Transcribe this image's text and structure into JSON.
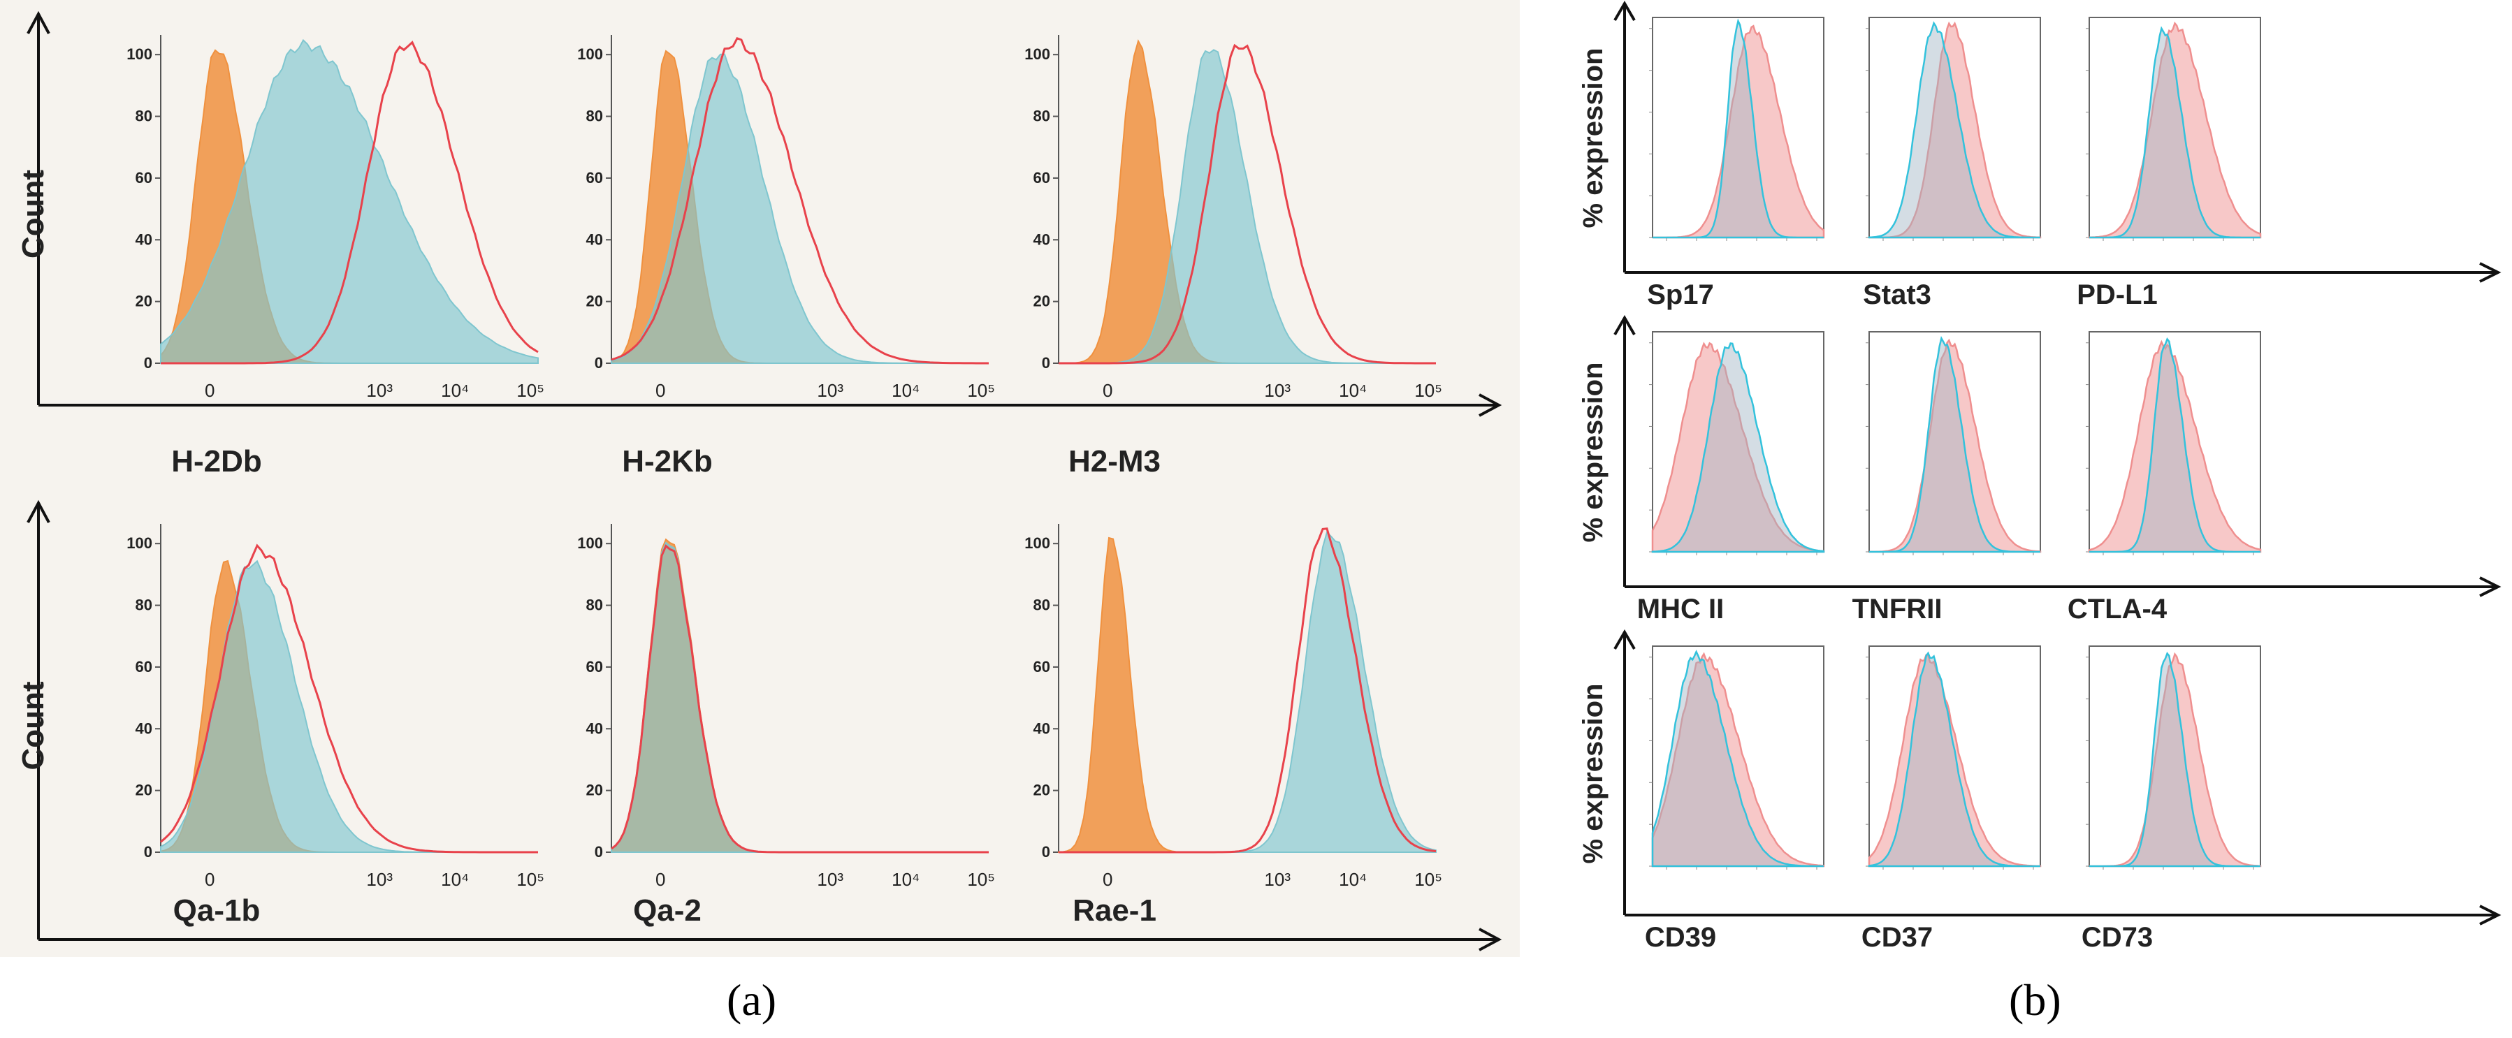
{
  "chart_data": [
    {
      "type": "histogram-grid",
      "panel_label": "(a)",
      "ylabel": "Count",
      "y_ticks": [
        "0",
        "20",
        "40",
        "60",
        "80",
        "100"
      ],
      "x_ticks": [
        "0",
        "10³",
        "10⁴",
        "10⁵"
      ],
      "series_colors": {
        "isotype": "#f0913f",
        "cells_a": "#7fc6cf",
        "cells_b": "#e8424b"
      },
      "histograms": [
        {
          "label": "H-2Db",
          "curves": [
            {
              "series": "isotype",
              "filled": true,
              "peak_x": 0.15,
              "width": 0.055,
              "height": 96
            },
            {
              "series": "cells_a",
              "filled": true,
              "peak_x": 0.38,
              "width": 0.16,
              "height": 97
            },
            {
              "series": "cells_b",
              "filled": false,
              "peak_x": 0.65,
              "width": 0.1,
              "height": 97
            }
          ]
        },
        {
          "label": "H-2Kb",
          "curves": [
            {
              "series": "isotype",
              "filled": true,
              "peak_x": 0.15,
              "width": 0.045,
              "height": 96
            },
            {
              "series": "cells_a",
              "filled": true,
              "peak_x": 0.28,
              "width": 0.09,
              "height": 94
            },
            {
              "series": "cells_b",
              "filled": false,
              "peak_x": 0.33,
              "width": 0.11,
              "height": 98
            }
          ]
        },
        {
          "label": "H2-M3",
          "curves": [
            {
              "series": "isotype",
              "filled": true,
              "peak_x": 0.21,
              "width": 0.045,
              "height": 97
            },
            {
              "series": "cells_a",
              "filled": true,
              "peak_x": 0.4,
              "width": 0.07,
              "height": 96
            },
            {
              "series": "cells_b",
              "filled": false,
              "peak_x": 0.48,
              "width": 0.08,
              "height": 97
            }
          ]
        },
        {
          "label": "Qa-1b",
          "curves": [
            {
              "series": "isotype",
              "filled": true,
              "peak_x": 0.17,
              "width": 0.05,
              "height": 88
            },
            {
              "series": "cells_a",
              "filled": true,
              "peak_x": 0.24,
              "width": 0.085,
              "height": 88
            },
            {
              "series": "cells_b",
              "filled": false,
              "peak_x": 0.26,
              "width": 0.1,
              "height": 92
            }
          ]
        },
        {
          "label": "Qa-2",
          "curves": [
            {
              "series": "isotype",
              "filled": true,
              "peak_x": 0.15,
              "width": 0.05,
              "height": 96
            },
            {
              "series": "cells_a",
              "filled": true,
              "peak_x": 0.15,
              "width": 0.05,
              "height": 95
            },
            {
              "series": "cells_b",
              "filled": false,
              "peak_x": 0.15,
              "width": 0.05,
              "height": 94
            }
          ]
        },
        {
          "label": "Rae-1",
          "curves": [
            {
              "series": "isotype",
              "filled": true,
              "peak_x": 0.14,
              "width": 0.035,
              "height": 96
            },
            {
              "series": "cells_a",
              "filled": true,
              "peak_x": 0.72,
              "width": 0.065,
              "height": 97
            },
            {
              "series": "cells_b",
              "filled": false,
              "peak_x": 0.7,
              "width": 0.065,
              "height": 98
            }
          ]
        }
      ]
    },
    {
      "type": "histogram-grid",
      "panel_label": "(b)",
      "ylabel": "% expression",
      "series_colors": {
        "control": "#33c2dc",
        "treated": "#ef8f8f"
      },
      "histograms": [
        {
          "label": "Sp17",
          "curves": [
            {
              "series": "control",
              "peak_x": 0.5,
              "width": 0.06,
              "height": 97
            },
            {
              "series": "treated",
              "peak_x": 0.58,
              "width": 0.12,
              "height": 95
            }
          ]
        },
        {
          "label": "Stat3",
          "curves": [
            {
              "series": "control",
              "peak_x": 0.38,
              "width": 0.1,
              "height": 96
            },
            {
              "series": "treated",
              "peak_x": 0.48,
              "width": 0.1,
              "height": 97
            }
          ]
        },
        {
          "label": "PD-L1",
          "curves": [
            {
              "series": "control",
              "peak_x": 0.43,
              "width": 0.08,
              "height": 94
            },
            {
              "series": "treated",
              "peak_x": 0.5,
              "width": 0.13,
              "height": 96
            }
          ]
        },
        {
          "label": "MHC II",
          "curves": [
            {
              "series": "control",
              "peak_x": 0.45,
              "width": 0.12,
              "height": 94
            },
            {
              "series": "treated",
              "peak_x": 0.32,
              "width": 0.15,
              "height": 94
            }
          ]
        },
        {
          "label": "TNFRII",
          "curves": [
            {
              "series": "control",
              "peak_x": 0.43,
              "width": 0.08,
              "height": 96
            },
            {
              "series": "treated",
              "peak_x": 0.47,
              "width": 0.11,
              "height": 95
            }
          ]
        },
        {
          "label": "CTLA-4",
          "curves": [
            {
              "series": "control",
              "peak_x": 0.45,
              "width": 0.07,
              "height": 96
            },
            {
              "series": "treated",
              "peak_x": 0.43,
              "width": 0.14,
              "height": 94
            }
          ]
        },
        {
          "label": "CD39",
          "curves": [
            {
              "series": "control",
              "peak_x": 0.25,
              "width": 0.13,
              "height": 96
            },
            {
              "series": "treated",
              "peak_x": 0.3,
              "width": 0.15,
              "height": 95
            }
          ]
        },
        {
          "label": "CD37",
          "curves": [
            {
              "series": "control",
              "peak_x": 0.35,
              "width": 0.1,
              "height": 96
            },
            {
              "series": "treated",
              "peak_x": 0.33,
              "width": 0.13,
              "height": 95
            }
          ]
        },
        {
          "label": "CD73",
          "curves": [
            {
              "series": "control",
              "peak_x": 0.45,
              "width": 0.07,
              "height": 96
            },
            {
              "series": "treated",
              "peak_x": 0.5,
              "width": 0.1,
              "height": 95
            }
          ]
        }
      ]
    }
  ]
}
